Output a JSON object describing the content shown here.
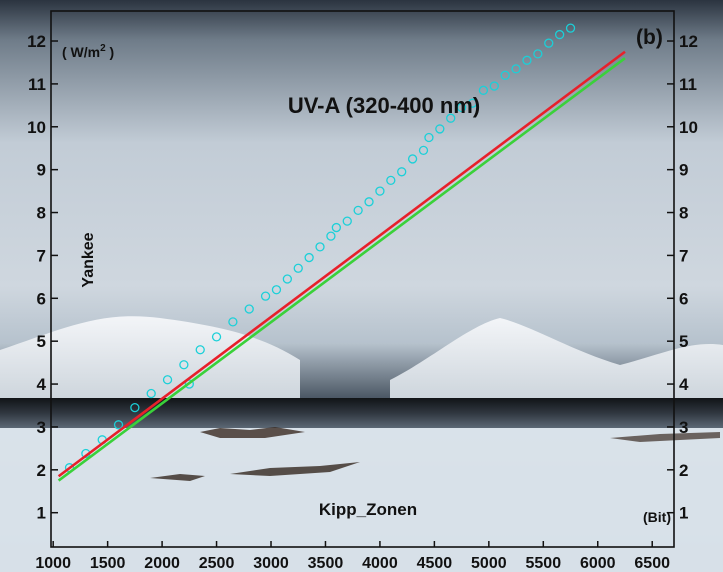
{
  "chart_data": {
    "type": "scatter",
    "panel_label": "(b)",
    "title": "UV-A (320-400 nm)",
    "xlabel": "Kipp_Zonen",
    "ylabel": "Yankee",
    "x_unit": "(Bit)",
    "y_unit_base": "( W/m",
    "y_unit_exp": "2",
    "y_unit_close": " )",
    "xlim": [
      980,
      6700
    ],
    "ylim": [
      0.2,
      12.7
    ],
    "x_ticks": [
      1000,
      1500,
      2000,
      2500,
      3000,
      3500,
      4000,
      4500,
      5000,
      5500,
      6000,
      6500
    ],
    "y_ticks": [
      1,
      2,
      3,
      4,
      5,
      6,
      7,
      8,
      9,
      10,
      11,
      12
    ],
    "grid": false,
    "colors": {
      "scatter": "#1bd0d8",
      "fit_red": "#e8202a",
      "fit_green": "#3ad13a",
      "background_sky": "#a9b6c2",
      "background_snow": "#dde5ec"
    },
    "series": [
      {
        "type": "scatter",
        "points": [
          [
            1150,
            2.05
          ],
          [
            1300,
            2.38
          ],
          [
            1450,
            2.7
          ],
          [
            1600,
            3.05
          ],
          [
            1750,
            3.45
          ],
          [
            1900,
            3.78
          ],
          [
            2050,
            4.1
          ],
          [
            2200,
            4.45
          ],
          [
            2250,
            4.0
          ],
          [
            2350,
            4.8
          ],
          [
            2500,
            5.1
          ],
          [
            2650,
            5.45
          ],
          [
            2800,
            5.75
          ],
          [
            2950,
            6.05
          ],
          [
            3050,
            6.2
          ],
          [
            3150,
            6.45
          ],
          [
            3250,
            6.7
          ],
          [
            3350,
            6.95
          ],
          [
            3450,
            7.2
          ],
          [
            3550,
            7.45
          ],
          [
            3600,
            7.65
          ],
          [
            3700,
            7.8
          ],
          [
            3800,
            8.05
          ],
          [
            3900,
            8.25
          ],
          [
            4000,
            8.5
          ],
          [
            4100,
            8.75
          ],
          [
            4200,
            8.95
          ],
          [
            4300,
            9.25
          ],
          [
            4400,
            9.45
          ],
          [
            4450,
            9.75
          ],
          [
            4550,
            9.95
          ],
          [
            4650,
            10.2
          ],
          [
            4750,
            10.45
          ],
          [
            4850,
            10.55
          ],
          [
            4950,
            10.85
          ],
          [
            5050,
            10.95
          ],
          [
            5150,
            11.2
          ],
          [
            5250,
            11.35
          ],
          [
            5350,
            11.55
          ],
          [
            5450,
            11.7
          ],
          [
            5550,
            11.95
          ],
          [
            5650,
            12.15
          ],
          [
            5750,
            12.3
          ]
        ]
      },
      {
        "type": "line",
        "color": "red",
        "points": [
          [
            1050,
            1.85
          ],
          [
            6250,
            11.75
          ]
        ]
      },
      {
        "type": "line",
        "color": "green",
        "points": [
          [
            1050,
            1.75
          ],
          [
            6250,
            11.6
          ]
        ]
      }
    ]
  }
}
